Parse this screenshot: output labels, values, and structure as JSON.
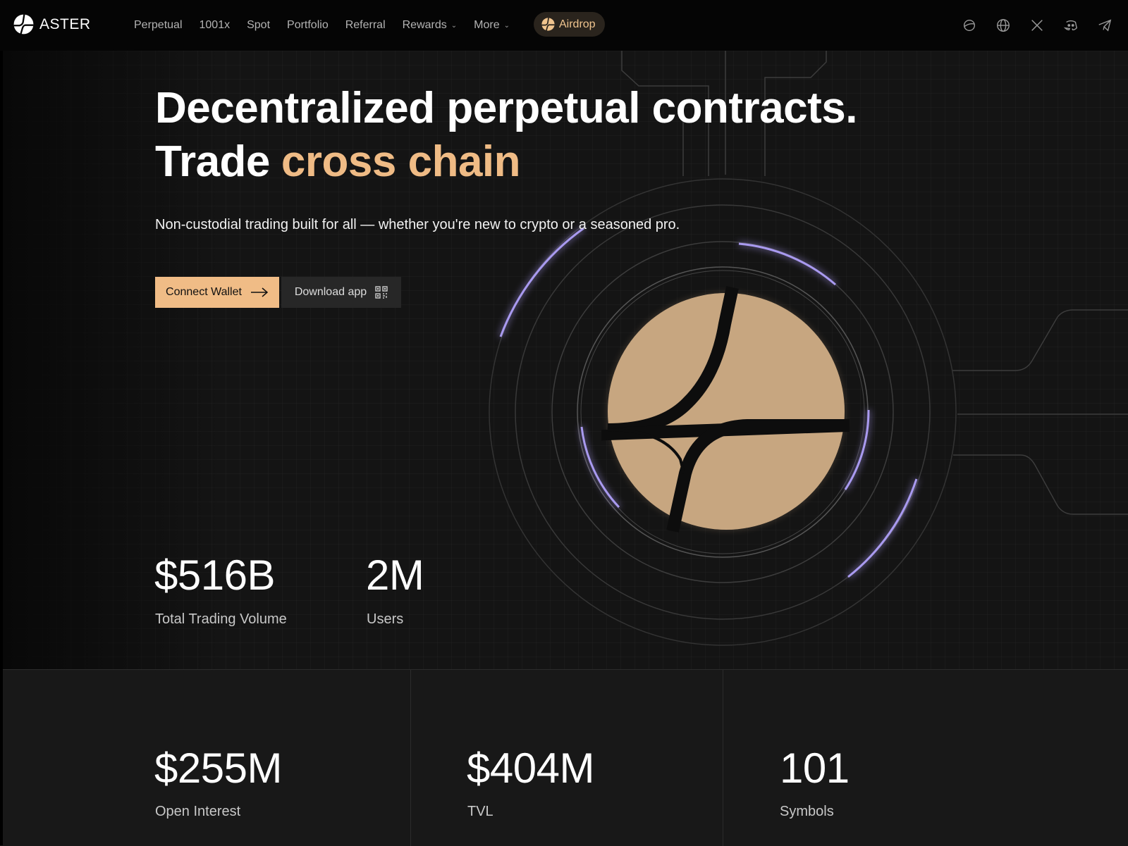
{
  "brand": {
    "name": "ASTER",
    "logo_icon": "aster-logo-icon"
  },
  "nav": {
    "links": [
      "Perpetual",
      "1001x",
      "Spot",
      "Portfolio",
      "Referral",
      "Rewards",
      "More"
    ],
    "airdrop_label": "Airdrop",
    "icons": [
      "docs-icon",
      "language-globe-icon",
      "x-twitter-icon",
      "discord-icon",
      "telegram-icon"
    ]
  },
  "hero": {
    "title_line1": "Decentralized perpetual contracts.",
    "title_line2_prefix": "Trade",
    "title_line2_accent": "cross chain",
    "subtitle": "Non-custodial trading built for all — whether you're new to crypto or a seasoned pro.",
    "connect_wallet": "Connect Wallet",
    "download_app": "Download app"
  },
  "stats_top": [
    {
      "value": "$516B",
      "label": "Total Trading Volume"
    },
    {
      "value": "2M",
      "label": "Users"
    }
  ],
  "stats_bottom": [
    {
      "value": "$255M",
      "label": "Open Interest"
    },
    {
      "value": "$404M",
      "label": "TVL"
    },
    {
      "value": "101",
      "label": "Symbols"
    }
  ],
  "colors": {
    "accent": "#f0bc86",
    "logo_fill": "#c4a37e",
    "ring_highlight": "#a99af0",
    "background": "#141414"
  }
}
